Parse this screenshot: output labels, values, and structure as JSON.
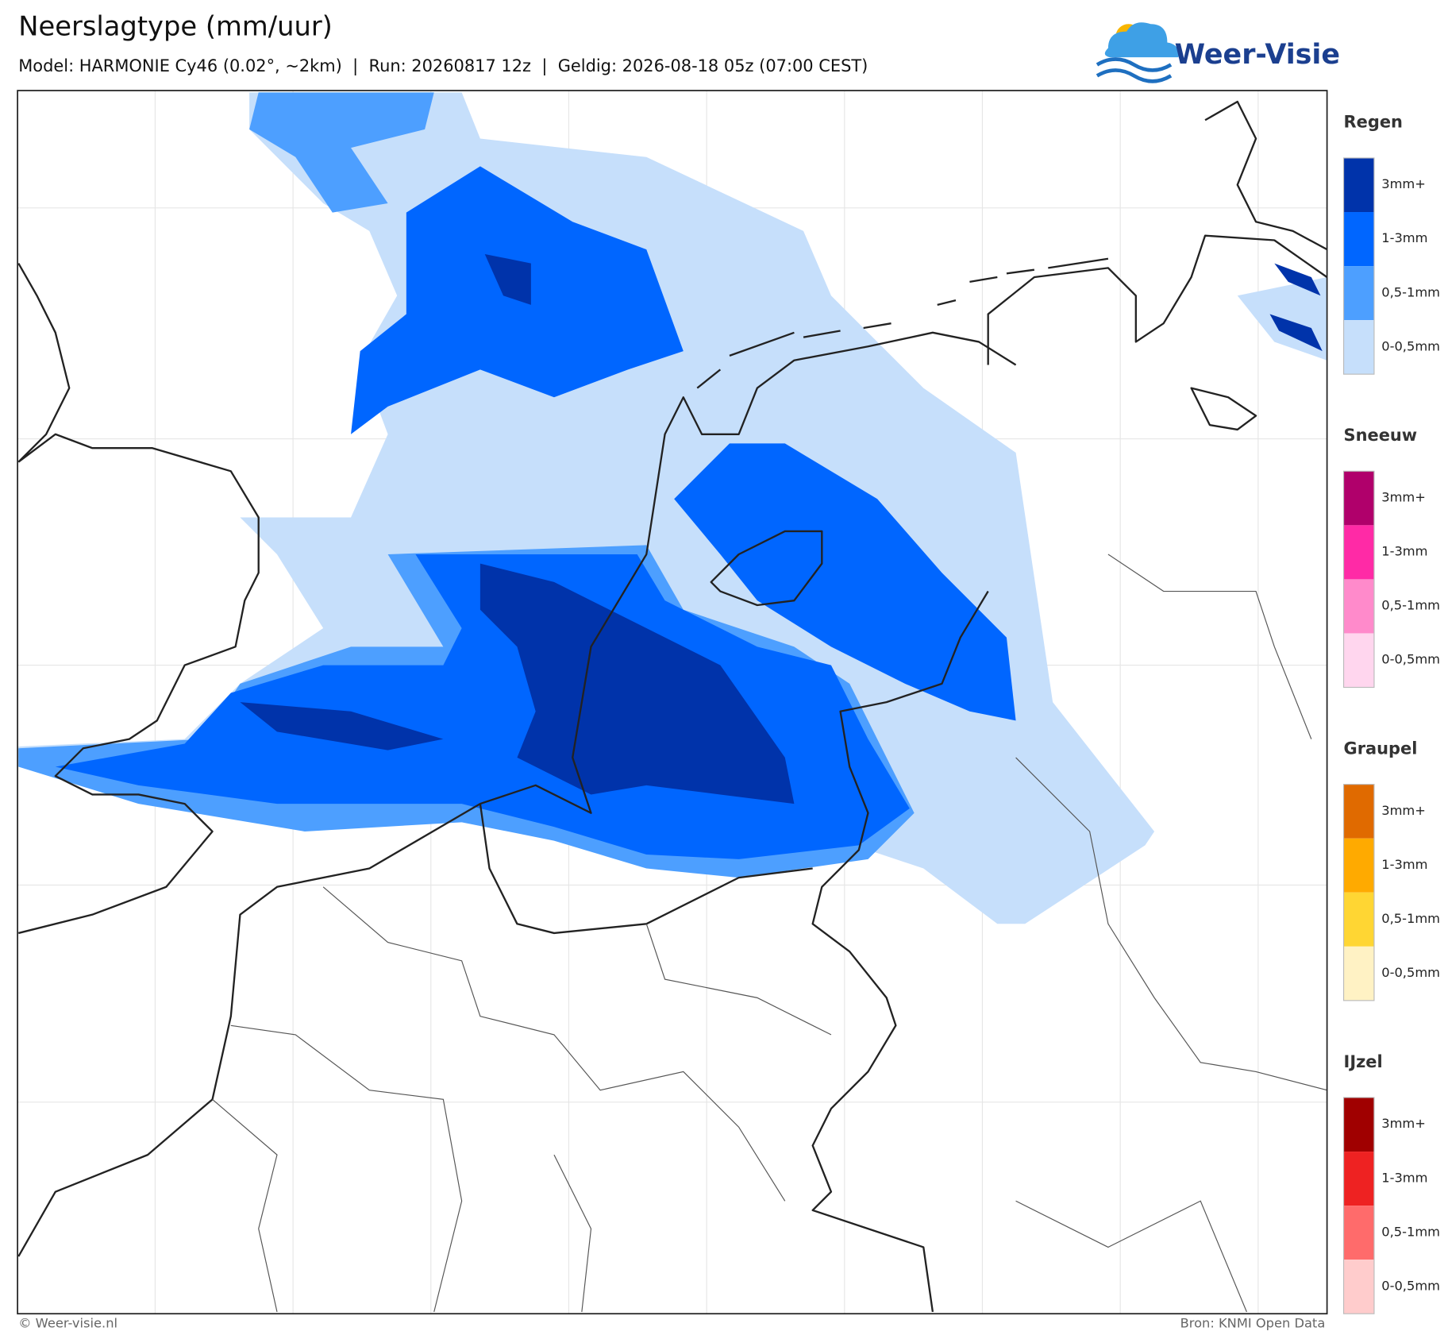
{
  "header": {
    "title": "Neerslagtype (mm/uur)",
    "subtitle": "Model: HARMONIE Cy46 (0.02°, ~2km)  |  Run: 20260817 12z  |  Geldig: 2026-08-18 05z (07:00 CEST)",
    "logo": "Weer-Visie"
  },
  "legend": [
    {
      "title": "Regen",
      "items": [
        {
          "label": "3mm+",
          "color": "#0033aa"
        },
        {
          "label": "1-3mm",
          "color": "#0066ff"
        },
        {
          "label": "0,5-1mm",
          "color": "#4d9fff"
        },
        {
          "label": "0-0,5mm",
          "color": "#c6dffb"
        }
      ]
    },
    {
      "title": "Sneeuw",
      "items": [
        {
          "label": "3mm+",
          "color": "#b0006b"
        },
        {
          "label": "1-3mm",
          "color": "#ff2aa6"
        },
        {
          "label": "0,5-1mm",
          "color": "#ff8acb"
        },
        {
          "label": "0-0,5mm",
          "color": "#ffd6ee"
        }
      ]
    },
    {
      "title": "Graupel",
      "items": [
        {
          "label": "3mm+",
          "color": "#e06a00"
        },
        {
          "label": "1-3mm",
          "color": "#ffaa00"
        },
        {
          "label": "0,5-1mm",
          "color": "#ffd633"
        },
        {
          "label": "0-0,5mm",
          "color": "#fff2c4"
        }
      ]
    },
    {
      "title": "IJzel",
      "items": [
        {
          "label": "3mm+",
          "color": "#a00000"
        },
        {
          "label": "1-3mm",
          "color": "#ee2222"
        },
        {
          "label": "0,5-1mm",
          "color": "#ff6b6b"
        },
        {
          "label": "0-0,5mm",
          "color": "#ffcccc"
        }
      ]
    }
  ],
  "footer": {
    "left": "© Weer-visie.nl",
    "right": "Bron: KNMI Open Data"
  }
}
